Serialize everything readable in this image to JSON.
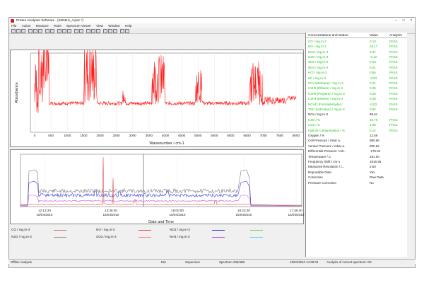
{
  "window": {
    "title": "Protea Analyser Software - [190410_4.pac *]"
  },
  "menu": [
    "File",
    "Action",
    "Measure",
    "Tools",
    "Spectrum Viewer",
    "View",
    "Window",
    "Help"
  ],
  "spectrum": {
    "ylabel": "Absorbance",
    "xlabel": "Wavenumber / cm-1",
    "x_ticks": [
      "0",
      "500",
      "1000",
      "1500",
      "2000",
      "2500",
      "3000",
      "3500",
      "4000",
      "4500",
      "5000",
      "5500",
      "6000",
      "6500",
      "7000",
      "7500",
      "8000"
    ]
  },
  "trend": {
    "xlabel": "Date and Time",
    "x_ticks": [
      {
        "time": "12:13:20",
        "date": "15/04/2010"
      },
      {
        "time": "13:36:40",
        "date": "15/04/2010"
      },
      {
        "time": "15:00:00",
        "date": "15/04/2010"
      },
      {
        "time": "16:23:20",
        "date": "15/04/2010"
      },
      {
        "time": "17:46:40",
        "date": "15/04/2010"
      }
    ]
  },
  "legend": [
    {
      "label": "CO / mg.m-3",
      "color": "#e87070"
    },
    {
      "label": "NO / mg.m-3",
      "color": "#e05050"
    },
    {
      "label": "NO2 / mg.m-3",
      "color": "#3a3ae0"
    },
    {
      "label": "",
      "color": "#6ad86a"
    },
    {
      "label": "N2O / mg.m-3",
      "color": "#a0a0a0"
    },
    {
      "label": "SO2 / mg.m-3",
      "color": "#f090a0"
    },
    {
      "label": "NH3 / mg.m-3",
      "color": "#c060c0"
    },
    {
      "label": "",
      "color": "#80c8ff"
    }
  ],
  "concentrations": {
    "header": {
      "name": "Concentrations and Status",
      "value": "Value",
      "analysis": "Analysis"
    },
    "rows": [
      {
        "name": "CO / mg.m-3",
        "value": "0.10",
        "analysis": "PASS",
        "color": "green"
      },
      {
        "name": "NO / mg.m-3",
        "value": "16.17",
        "analysis": "PASS",
        "color": "green"
      },
      {
        "name": "NO2 / mg.m-3",
        "value": "0.37",
        "analysis": "PASS",
        "color": "green"
      },
      {
        "name": "N2O / mg.m-3",
        "value": "-0.12",
        "analysis": "PASS",
        "color": "green"
      },
      {
        "name": "SO2 / mg.m-3",
        "value": "0.19",
        "analysis": "PASS",
        "color": "green"
      },
      {
        "name": "NH3 / mg.m-3",
        "value": "0.01",
        "analysis": "PASS",
        "color": "green"
      },
      {
        "name": "HCl / mg.m-3",
        "value": "0.86",
        "analysis": "PASS",
        "color": "green"
      },
      {
        "name": "HF / mg.m-3",
        "value": "-0.03",
        "analysis": "PASS",
        "color": "green"
      },
      {
        "name": "CH4 (Methane) / mg.m-3",
        "value": "0.21",
        "analysis": "PASS",
        "color": "green"
      },
      {
        "name": "C2H6 (Ethane) / mg.m-3",
        "value": "0.09",
        "analysis": "PASS",
        "color": "green"
      },
      {
        "name": "C3H8 (Propane) / mg.m-3",
        "value": "0.28",
        "analysis": "PASS",
        "color": "green"
      },
      {
        "name": "C2H4 (Ethene) / mg.m-3",
        "value": "0.40",
        "analysis": "PASS",
        "color": "green"
      },
      {
        "name": "HCHO (Formaldehyde) /",
        "value": "-0.03",
        "analysis": "PASS",
        "color": "green"
      },
      {
        "name": "TOC (Indicative) / mg.m-3",
        "value": "0.84",
        "analysis": "PASS",
        "color": "green"
      },
      {
        "name": "NOx / mg.m-3",
        "value": "89.61",
        "analysis": "",
        "color": "black"
      },
      {
        "name": "H2O / %",
        "value": "19.79",
        "analysis": "PASS",
        "color": "green"
      },
      {
        "name": "CO2 / %",
        "value": "4.30",
        "analysis": "PASS",
        "color": "green"
      },
      {
        "name": "Optical Contamination / %",
        "value": "0.12",
        "analysis": "PASS",
        "color": "green"
      },
      {
        "name": "Oxygen / %",
        "value": "12.66",
        "analysis": "",
        "color": "black"
      },
      {
        "name": "Cell Pressure / mbar a.",
        "value": "980.66",
        "analysis": "",
        "color": "black"
      },
      {
        "name": "Venturi Pressure / mbar a.",
        "value": "805.62",
        "analysis": "",
        "color": "black"
      },
      {
        "name": "Differential Pressure / mb..",
        "value": "-175.04",
        "analysis": "",
        "color": "black"
      },
      {
        "name": "Temperature / C",
        "value": "181.00",
        "analysis": "",
        "color": "black"
      },
      {
        "name": "Frequency Shift / cm-1",
        "value": "1918.35",
        "analysis": "",
        "color": "black"
      },
      {
        "name": "Measured Resolution / c..",
        "value": "2.50",
        "analysis": "",
        "color": "black"
      },
      {
        "name": "Reportable Data",
        "value": "Yes",
        "analysis": "",
        "color": "black"
      },
      {
        "name": "Correction",
        "value": "Raw Data",
        "analysis": "",
        "color": "black"
      },
      {
        "name": "Pressure Correction",
        "value": "No",
        "analysis": "",
        "color": "black"
      }
    ]
  },
  "status": {
    "mode": "Offline Analysis",
    "units": "Mix",
    "user": "Supervisor",
    "spectrum": "Spectrum 225/488",
    "datetime": "15/04/2010 14:26:04",
    "message": "Analysis of current spectrum: OK"
  },
  "colors": {
    "spectrum_line": "#ff1a1a",
    "pass": "#1fc21f"
  }
}
